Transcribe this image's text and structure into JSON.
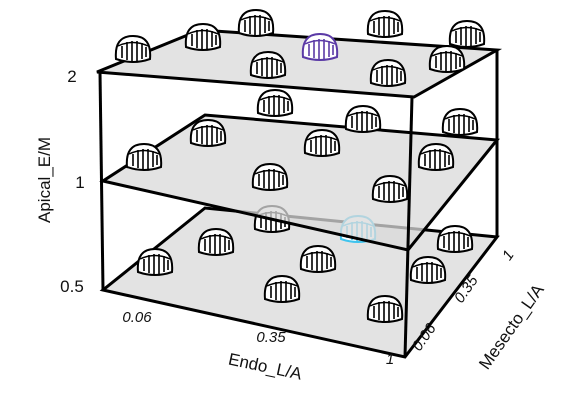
{
  "axes": {
    "vertical": {
      "title": "Apical_E/M",
      "ticks": [
        "2",
        "1",
        "0.5"
      ]
    },
    "front": {
      "title": "Endo_L/A",
      "ticks": [
        "0.06",
        "0.35",
        "1"
      ]
    },
    "depth": {
      "title": "Mesecto_L/A",
      "ticks": [
        "0.06",
        "0.35",
        "1"
      ]
    }
  }
}
